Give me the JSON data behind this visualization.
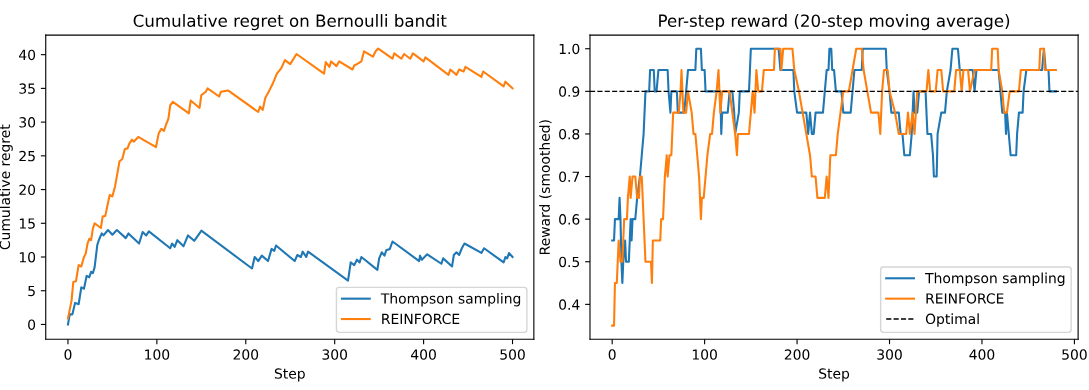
{
  "chart_data": [
    {
      "type": "line",
      "title": "Cumulative regret on Bernoulli bandit",
      "xlabel": "Step",
      "ylabel": "Cumulative regret",
      "xlim": [
        -25,
        524
      ],
      "ylim": [
        -2.2,
        42.9
      ],
      "xticks": [
        0,
        100,
        200,
        300,
        400,
        500
      ],
      "yticks": [
        0,
        5,
        10,
        15,
        20,
        25,
        30,
        35,
        40
      ],
      "grid": false,
      "legend": "bottom right",
      "series": [
        {
          "name": "Thompson sampling",
          "color": "#1f77b4",
          "x": [
            0,
            2,
            5,
            8,
            12,
            15,
            18,
            21,
            24,
            26,
            28,
            30,
            33,
            35,
            38,
            40,
            45,
            50,
            55,
            65,
            68,
            80,
            84,
            88,
            91,
            115,
            117,
            120,
            123,
            130,
            135,
            142,
            148,
            150,
            207,
            210,
            214,
            218,
            225,
            229,
            232,
            234,
            255,
            258,
            262,
            264,
            268,
            270,
            315,
            318,
            322,
            325,
            328,
            330,
            348,
            350,
            353,
            356,
            358,
            362,
            365,
            395,
            396,
            398,
            404,
            420,
            422,
            432,
            434,
            437,
            440,
            443,
            446,
            465,
            468,
            490,
            492,
            494,
            496,
            500
          ],
          "values": [
            0,
            1.5,
            1.5,
            3.2,
            3,
            5.5,
            5.3,
            7.2,
            7,
            7.8,
            7.6,
            8.5,
            11.8,
            12.6,
            13.5,
            13.2,
            14,
            13.3,
            14,
            12.8,
            13.5,
            12,
            13.7,
            13.2,
            13.8,
            11.3,
            12,
            11.5,
            12.5,
            11.6,
            13.2,
            12.4,
            13.5,
            13.9,
            8.3,
            10,
            9.4,
            10.2,
            9.4,
            11.2,
            10.9,
            11.7,
            9.4,
            10.3,
            10,
            10.8,
            10,
            10.8,
            6.5,
            9.2,
            8.8,
            9.6,
            9.2,
            10,
            8.1,
            9.8,
            10.7,
            10.2,
            11,
            11.2,
            12.3,
            9.4,
            10.2,
            9.6,
            10.4,
            9,
            9.8,
            8.6,
            10.3,
            10.7,
            10.3,
            11.3,
            12,
            10.6,
            11.3,
            9.2,
            10,
            9.8,
            10.6,
            10
          ]
        },
        {
          "name": "REINFORCE",
          "color": "#ff7f0e",
          "x": [
            0,
            4,
            6,
            9,
            12,
            15,
            18,
            20,
            22,
            24,
            26,
            28,
            30,
            37,
            39,
            42,
            45,
            47,
            50,
            53,
            55,
            58,
            61,
            64,
            67,
            69,
            72,
            74,
            79,
            99,
            102,
            105,
            108,
            110,
            113,
            115,
            118,
            136,
            138,
            148,
            150,
            155,
            157,
            170,
            172,
            180,
            214,
            216,
            219,
            222,
            225,
            230,
            235,
            240,
            244,
            250,
            257,
            288,
            290,
            294,
            296,
            302,
            305,
            320,
            322,
            325,
            330,
            333,
            343,
            346,
            349,
            365,
            367,
            375,
            378,
            385,
            388,
            400,
            402,
            428,
            430,
            437,
            440,
            445,
            447,
            465,
            467,
            490,
            492,
            500
          ],
          "values": [
            0.9,
            3.5,
            6.3,
            6.4,
            8.8,
            8.6,
            10,
            10.5,
            12,
            12.7,
            12.5,
            14.2,
            15,
            14.3,
            16,
            16.1,
            18,
            19.2,
            19,
            20.5,
            22,
            24.2,
            24.5,
            26,
            26.1,
            26.8,
            27.4,
            27.1,
            27.8,
            26.3,
            28.3,
            29,
            28.7,
            29.5,
            30.5,
            32.5,
            33,
            31.3,
            33.2,
            32.1,
            34,
            34.5,
            35,
            33.8,
            34.5,
            34.7,
            31.5,
            32.3,
            31.8,
            33.6,
            34.3,
            35.6,
            37.2,
            38,
            39.2,
            38.6,
            40.1,
            37.2,
            38.9,
            38.2,
            39,
            38.3,
            39,
            37.8,
            38.4,
            38.6,
            39,
            40.5,
            39.7,
            40.5,
            40.9,
            39.4,
            40.2,
            39.4,
            40.1,
            39.4,
            40.2,
            39,
            39.6,
            37,
            37.8,
            37,
            37.8,
            37.5,
            38.2,
            36.7,
            37.5,
            35.3,
            36,
            35
          ]
        }
      ]
    },
    {
      "type": "line",
      "title": "Per-step reward (20-step moving average)",
      "xlabel": "Step",
      "ylabel": "Reward (smoothed)",
      "xlim": [
        -24,
        504
      ],
      "ylim": [
        0.318,
        1.032
      ],
      "xticks": [
        0,
        100,
        200,
        300,
        400,
        500
      ],
      "yticks": [
        {
          "value": 0.4,
          "label": "0.4"
        },
        {
          "value": 0.5,
          "label": "0.5"
        },
        {
          "value": 0.6,
          "label": "0.6"
        },
        {
          "value": 0.7,
          "label": "0.7"
        },
        {
          "value": 0.8,
          "label": "0.8"
        },
        {
          "value": 0.9,
          "label": "0.9"
        },
        {
          "value": 1.0,
          "label": "1.0"
        }
      ],
      "grid": false,
      "legend": "bottom right",
      "ref_lines": [
        {
          "axis": "y",
          "value": 0.9,
          "label": "Optimal",
          "color": "#000000",
          "line_style": "dashed"
        }
      ],
      "series": [
        {
          "name": "Thompson sampling",
          "color": "#1f77b4",
          "x": [
            0,
            2,
            3,
            7,
            8,
            9,
            10,
            11,
            12,
            14,
            15,
            18,
            19,
            20,
            21,
            22,
            25,
            27,
            30,
            32,
            34,
            35,
            36,
            40,
            41,
            45,
            46,
            48,
            50,
            60,
            61,
            63,
            64,
            70,
            71,
            78,
            80,
            82,
            90,
            91,
            96,
            97,
            100,
            101,
            117,
            118,
            119,
            125,
            127,
            130,
            132,
            133,
            137,
            138,
            148,
            149,
            150,
            180,
            182,
            196,
            197,
            200,
            210,
            212,
            214,
            216,
            218,
            220,
            228,
            230,
            232,
            234,
            235,
            237,
            238,
            240,
            242,
            248,
            250,
            258,
            260,
            262,
            270,
            271,
            296,
            297,
            300,
            302,
            310,
            312,
            314,
            316,
            322,
            324,
            326,
            327,
            330,
            332,
            339,
            341,
            345,
            347,
            348,
            351,
            352,
            356,
            360,
            362,
            366,
            368,
            374,
            376,
            390,
            392,
            394,
            418,
            420,
            422,
            425,
            426,
            427,
            429,
            431,
            437,
            438,
            440,
            444,
            445,
            448,
            465,
            467,
            469,
            472,
            473,
            480
          ],
          "values": [
            0.55,
            0.55,
            0.6,
            0.6,
            0.65,
            0.6,
            0.5,
            0.45,
            0.5,
            0.55,
            0.5,
            0.5,
            0.55,
            0.6,
            0.55,
            0.6,
            0.6,
            0.65,
            0.7,
            0.75,
            0.8,
            0.85,
            0.9,
            0.9,
            0.95,
            0.95,
            0.9,
            0.9,
            0.95,
            0.95,
            0.9,
            0.85,
            0.9,
            0.9,
            0.85,
            0.85,
            0.9,
            0.95,
            0.95,
            1.0,
            1.0,
            0.95,
            0.95,
            0.9,
            0.9,
            0.8,
            0.85,
            0.85,
            0.9,
            0.9,
            0.85,
            0.8,
            0.85,
            0.9,
            0.9,
            0.95,
            1.0,
            1.0,
            0.95,
            0.95,
            0.9,
            0.85,
            0.85,
            0.8,
            0.85,
            0.8,
            0.8,
            0.85,
            0.85,
            0.9,
            0.95,
            0.95,
            1.0,
            1.0,
            0.95,
            0.95,
            0.9,
            0.9,
            0.85,
            0.85,
            0.9,
            0.95,
            0.95,
            1.0,
            1.0,
            0.95,
            0.9,
            0.85,
            0.85,
            0.8,
            0.8,
            0.75,
            0.75,
            0.8,
            0.9,
            0.85,
            0.85,
            0.9,
            0.9,
            0.8,
            0.8,
            0.75,
            0.7,
            0.7,
            0.8,
            0.85,
            0.85,
            0.9,
            0.95,
            1.0,
            1.0,
            0.95,
            0.95,
            0.9,
            0.95,
            0.95,
            0.9,
            0.85,
            0.85,
            0.8,
            0.85,
            0.8,
            0.75,
            0.75,
            0.8,
            0.85,
            0.85,
            0.9,
            0.95,
            0.95,
            1.0,
            0.95,
            0.95,
            0.9,
            0.9
          ]
        },
        {
          "name": "REINFORCE",
          "color": "#ff7f0e",
          "x": [
            0,
            2,
            3,
            5,
            6,
            7,
            9,
            11,
            12,
            13,
            16,
            17,
            19,
            20,
            22,
            25,
            27,
            29,
            30,
            32,
            34,
            36,
            42,
            43,
            44,
            52,
            53,
            55,
            57,
            59,
            60,
            62,
            64,
            66,
            72,
            74,
            75,
            77,
            80,
            82,
            86,
            88,
            90,
            92,
            94,
            96,
            97,
            99,
            101,
            103,
            106,
            108,
            110,
            113,
            115,
            117,
            119,
            127,
            130,
            133,
            135,
            136,
            148,
            150,
            152,
            154,
            156,
            158,
            162,
            164,
            175,
            176,
            182,
            183,
            185,
            195,
            197,
            202,
            210,
            214,
            216,
            220,
            222,
            230,
            232,
            234,
            236,
            242,
            244,
            247,
            250,
            256,
            260,
            264,
            270,
            272,
            276,
            280,
            288,
            290,
            292,
            294,
            298,
            300,
            306,
            310,
            318,
            320,
            322,
            325,
            327,
            330,
            340,
            342,
            344,
            350,
            352,
            356,
            358,
            370,
            372,
            376,
            378,
            380,
            385,
            387,
            392,
            410,
            411,
            417,
            418,
            422,
            424,
            427,
            430,
            440,
            442,
            462,
            463,
            467,
            468,
            480
          ],
          "values": [
            0.35,
            0.35,
            0.45,
            0.45,
            0.5,
            0.55,
            0.5,
            0.5,
            0.55,
            0.6,
            0.6,
            0.65,
            0.7,
            0.65,
            0.7,
            0.7,
            0.65,
            0.65,
            0.7,
            0.7,
            0.6,
            0.5,
            0.5,
            0.45,
            0.55,
            0.55,
            0.6,
            0.6,
            0.7,
            0.75,
            0.7,
            0.75,
            0.75,
            0.85,
            0.85,
            0.9,
            0.95,
            0.85,
            0.85,
            0.9,
            0.85,
            0.8,
            0.8,
            0.75,
            0.7,
            0.6,
            0.65,
            0.65,
            0.7,
            0.75,
            0.8,
            0.8,
            0.85,
            0.9,
            0.95,
            0.85,
            0.9,
            0.9,
            0.85,
            0.8,
            0.75,
            0.8,
            0.8,
            0.85,
            0.9,
            0.85,
            0.95,
            0.9,
            0.9,
            0.95,
            0.95,
            1.0,
            1.0,
            0.95,
            1.0,
            1.0,
            0.95,
            0.9,
            0.8,
            0.75,
            0.7,
            0.7,
            0.65,
            0.65,
            0.7,
            0.65,
            0.75,
            0.75,
            0.8,
            0.85,
            0.9,
            0.9,
            0.95,
            1.0,
            1.0,
            0.95,
            0.9,
            0.85,
            0.85,
            0.8,
            0.9,
            0.95,
            0.95,
            0.9,
            0.85,
            0.8,
            0.8,
            0.85,
            0.8,
            0.85,
            0.8,
            0.9,
            0.9,
            0.95,
            0.9,
            0.9,
            0.95,
            0.95,
            0.9,
            0.9,
            0.95,
            0.95,
            0.9,
            0.95,
            0.95,
            0.9,
            0.95,
            0.95,
            1.0,
            1.0,
            0.95,
            0.9,
            0.85,
            0.85,
            0.9,
            0.9,
            0.95,
            0.95,
            1.0,
            1.0,
            0.95,
            0.95
          ]
        }
      ]
    }
  ]
}
